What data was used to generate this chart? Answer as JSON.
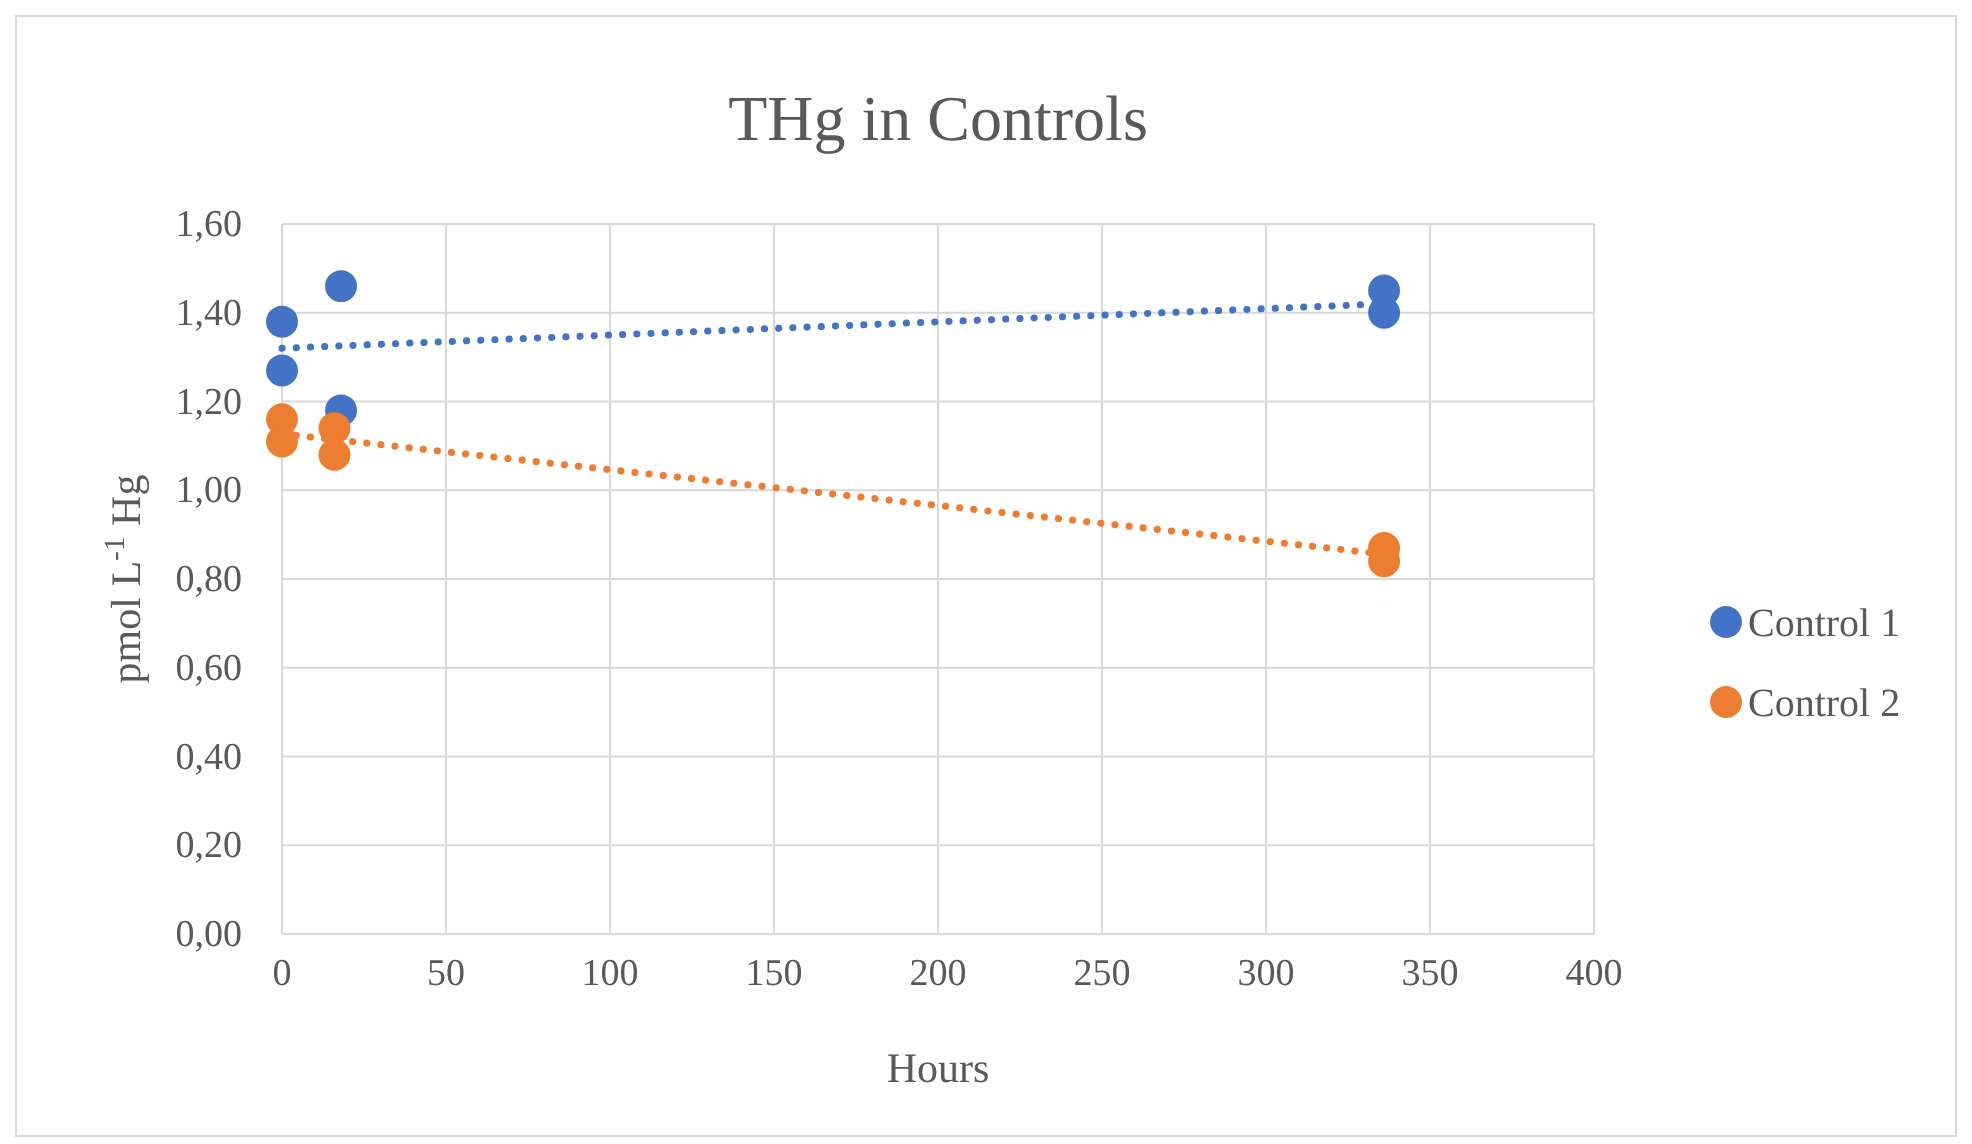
{
  "chart_data": {
    "type": "scatter",
    "title": "THg in Controls",
    "xlabel": "Hours",
    "ylabel": "pmol L$^{-1}$ Hg",
    "xlim": [
      0,
      400
    ],
    "xticks": [
      0,
      50,
      100,
      150,
      200,
      250,
      300,
      350,
      400
    ],
    "ylim": [
      0,
      1.6
    ],
    "yticks": [
      {
        "value": 0,
        "label": "0,00"
      },
      {
        "value": 0.2,
        "label": "0,20"
      },
      {
        "value": 0.4,
        "label": "0,40"
      },
      {
        "value": 0.6,
        "label": "0,60"
      },
      {
        "value": 0.8,
        "label": "0,80"
      },
      {
        "value": 1.0,
        "label": "1,00"
      },
      {
        "value": 1.2,
        "label": "1,20"
      },
      {
        "value": 1.4,
        "label": "1,40"
      },
      {
        "value": 1.6,
        "label": "1,60"
      }
    ],
    "grid": true,
    "legend": "right",
    "marker": "circle",
    "series": [
      {
        "name": "Control 1",
        "color": "#4472c4",
        "x": [
          0,
          0,
          18,
          18,
          336,
          336
        ],
        "values": [
          1.38,
          1.27,
          1.46,
          1.18,
          1.45,
          1.4
        ]
      },
      {
        "name": "Control 2",
        "color": "#ed7d31",
        "x": [
          0,
          0,
          16,
          16,
          336,
          336
        ],
        "values": [
          1.16,
          1.11,
          1.14,
          1.08,
          0.87,
          0.84
        ]
      },
      {
        "type": "line",
        "color": "#4472c4",
        "line_style": "dotted",
        "marker": "none",
        "x": [
          0,
          336
        ],
        "values": [
          1.32,
          1.42
        ]
      },
      {
        "type": "line",
        "color": "#ed7d31",
        "line_style": "dotted",
        "marker": "none",
        "x": [
          0,
          336
        ],
        "values": [
          1.127,
          0.856
        ]
      }
    ]
  }
}
